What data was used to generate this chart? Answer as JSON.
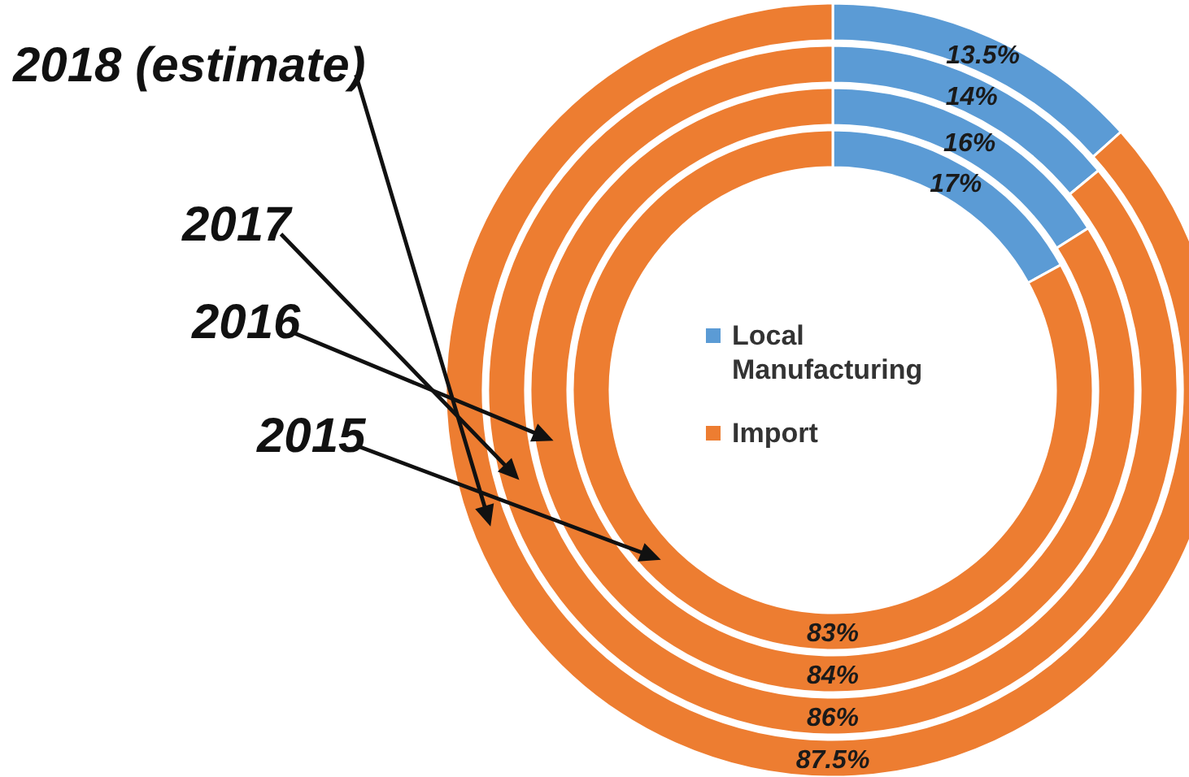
{
  "chart_data": [
    {
      "type": "donut",
      "title": "2018 (estimate)",
      "categories": [
        null,
        null
      ],
      "values": [
        13.5,
        87.5
      ],
      "value_labels": [
        "13.5%",
        "87.5%"
      ],
      "colors": [
        "#5b9bd5",
        "#ed7d31"
      ]
    },
    {
      "type": "donut",
      "title": "2017",
      "categories": [
        null,
        null
      ],
      "values": [
        14,
        86
      ],
      "value_labels": [
        "14%",
        "86%"
      ],
      "colors": [
        "#5b9bd5",
        "#ed7d31"
      ]
    },
    {
      "type": "donut",
      "title": "2016",
      "categories": [
        null,
        null
      ],
      "values": [
        16,
        84
      ],
      "value_labels": [
        "16%",
        "84%"
      ],
      "colors": [
        "#5b9bd5",
        "#ed7d31"
      ]
    },
    {
      "type": "donut",
      "title": "2015",
      "categories": [
        "Local Manufacturing",
        "Import"
      ],
      "values": [
        17,
        83
      ],
      "value_labels": [
        "17%",
        "83%"
      ],
      "colors": [
        "#5b9bd5",
        "#ed7d31"
      ],
      "legend": "center"
    }
  ]
}
